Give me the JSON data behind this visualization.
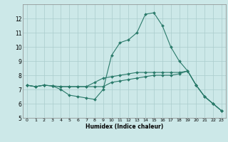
{
  "title": "",
  "xlabel": "Humidex (Indice chaleur)",
  "background_color": "#cce8e8",
  "grid_color": "#aacccc",
  "line_color": "#2a7a6a",
  "xlim": [
    -0.5,
    23.5
  ],
  "ylim": [
    5,
    13
  ],
  "yticks": [
    5,
    6,
    7,
    8,
    9,
    10,
    11,
    12
  ],
  "xticks": [
    0,
    1,
    2,
    3,
    4,
    5,
    6,
    7,
    8,
    9,
    10,
    11,
    12,
    13,
    14,
    15,
    16,
    17,
    18,
    19,
    20,
    21,
    22,
    23
  ],
  "line1_x": [
    0,
    1,
    2,
    3,
    4,
    5,
    6,
    7,
    8,
    9,
    10,
    11,
    12,
    13,
    14,
    15,
    16,
    17,
    18,
    19,
    20,
    21,
    22,
    23
  ],
  "line1_y": [
    7.3,
    7.2,
    7.3,
    7.25,
    7.2,
    7.2,
    7.2,
    7.2,
    7.2,
    7.2,
    7.5,
    7.6,
    7.7,
    7.8,
    7.9,
    8.0,
    8.0,
    8.0,
    8.1,
    8.3,
    7.3,
    6.5,
    6.0,
    5.5
  ],
  "line2_x": [
    0,
    1,
    2,
    3,
    4,
    5,
    6,
    7,
    8,
    9,
    10,
    11,
    12,
    13,
    14,
    15,
    16,
    17,
    18,
    19,
    20,
    21,
    22,
    23
  ],
  "line2_y": [
    7.3,
    7.2,
    7.3,
    7.25,
    7.0,
    6.6,
    6.5,
    6.4,
    6.3,
    7.0,
    9.4,
    10.3,
    10.5,
    11.0,
    12.3,
    12.4,
    11.5,
    10.0,
    9.0,
    8.3,
    7.3,
    6.5,
    6.0,
    5.5
  ],
  "line3_x": [
    0,
    1,
    2,
    3,
    4,
    5,
    6,
    7,
    8,
    9,
    10,
    11,
    12,
    13,
    14,
    15,
    16,
    17,
    18,
    19,
    20,
    21,
    22,
    23
  ],
  "line3_y": [
    7.3,
    7.2,
    7.3,
    7.25,
    7.2,
    7.2,
    7.2,
    7.2,
    7.5,
    7.8,
    7.9,
    8.0,
    8.1,
    8.2,
    8.2,
    8.2,
    8.2,
    8.2,
    8.2,
    8.3,
    7.3,
    6.5,
    6.0,
    5.5
  ]
}
